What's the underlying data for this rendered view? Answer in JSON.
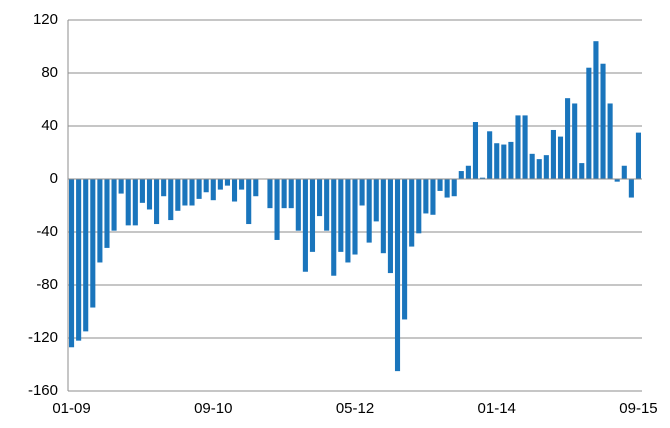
{
  "chart_data": {
    "type": "bar",
    "color": "#1a75bc",
    "categories": [
      "01-09",
      null,
      null,
      null,
      null,
      null,
      null,
      null,
      null,
      null,
      null,
      null,
      null,
      null,
      null,
      null,
      null,
      null,
      null,
      null,
      "09-10",
      null,
      null,
      null,
      null,
      null,
      null,
      null,
      null,
      null,
      null,
      null,
      null,
      null,
      null,
      null,
      null,
      null,
      null,
      null,
      "05-12",
      null,
      null,
      null,
      null,
      null,
      null,
      null,
      null,
      null,
      null,
      null,
      null,
      null,
      null,
      null,
      null,
      null,
      null,
      null,
      "01-14",
      null,
      null,
      null,
      null,
      null,
      null,
      null,
      null,
      null,
      null,
      null,
      null,
      null,
      null,
      null,
      null,
      null,
      null,
      null,
      "09-15"
    ],
    "values": [
      -127,
      -122,
      -115,
      -97,
      -63,
      -52,
      -39,
      -11,
      -35,
      -35,
      -18,
      -23,
      -34,
      -13,
      -31,
      -24,
      -20,
      -20,
      -15,
      -10,
      -16,
      -8,
      -5,
      -17,
      -8,
      -34,
      -13,
      0,
      -22,
      -46,
      -22,
      -22,
      -39,
      -70,
      -55,
      -28,
      -39,
      -73,
      -55,
      -63,
      -57,
      -20,
      -48,
      -32,
      -56,
      -71,
      -145,
      -106,
      -51,
      -41,
      -26,
      -27,
      -9,
      -14,
      -13,
      6,
      10,
      43,
      1,
      36,
      27,
      26,
      28,
      48,
      48,
      19,
      15,
      18,
      37,
      32,
      61,
      57,
      12,
      84,
      104,
      87,
      57,
      -2,
      10,
      -14,
      35
    ],
    "ylim": [
      -160,
      120
    ],
    "yticks": [
      -160,
      -120,
      -80,
      -40,
      0,
      40,
      80,
      120
    ],
    "grid": true
  }
}
